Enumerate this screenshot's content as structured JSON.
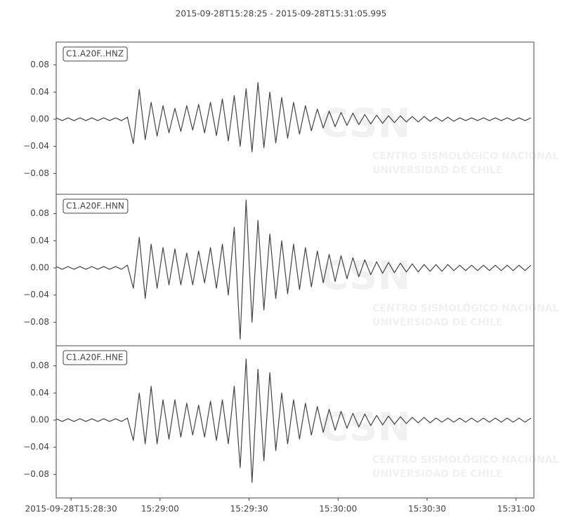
{
  "title": "2015-09-28T15:28:25  -  2015-09-28T15:31:05.995",
  "watermark": {
    "logo": "CSN",
    "line1": "CENTRO SISMOLÓGICO NACIONAL",
    "line2": "UNIVERSIDAD DE CHILE"
  },
  "chart_data": [
    {
      "type": "line",
      "x": [
        0,
        2,
        4,
        6,
        8,
        10,
        12,
        14,
        16,
        18,
        20,
        22,
        24,
        26,
        28,
        30,
        32,
        34,
        36,
        38,
        40,
        42,
        44,
        46,
        48,
        50,
        52,
        54,
        56,
        58,
        60,
        62,
        64,
        66,
        68,
        70,
        72,
        74,
        76,
        78,
        80,
        82,
        84,
        86,
        88,
        90,
        92,
        94,
        96,
        98,
        100,
        102,
        104,
        106,
        108,
        110,
        112,
        114,
        116,
        118,
        120,
        122,
        124,
        126,
        128,
        130,
        132,
        134,
        136,
        138,
        140,
        142,
        144,
        146,
        148,
        150,
        152,
        154,
        156,
        158,
        160
      ],
      "series": [
        {
          "name": "C1.A20F..HNZ",
          "color": "#444444",
          "values": [
            0.002,
            -0.002,
            0.002,
            -0.002,
            0.002,
            -0.002,
            0.002,
            -0.002,
            0.002,
            -0.002,
            0.002,
            -0.002,
            0.003,
            -0.036,
            0.044,
            -0.03,
            0.025,
            -0.025,
            0.02,
            -0.02,
            0.016,
            -0.018,
            0.02,
            -0.016,
            0.022,
            -0.02,
            0.025,
            -0.024,
            0.03,
            -0.032,
            0.035,
            -0.04,
            0.045,
            -0.048,
            0.054,
            -0.042,
            0.04,
            -0.035,
            0.032,
            -0.028,
            0.025,
            -0.022,
            0.02,
            -0.017,
            0.015,
            -0.013,
            0.012,
            -0.011,
            0.01,
            -0.009,
            0.009,
            -0.008,
            0.007,
            -0.007,
            0.006,
            -0.006,
            0.005,
            -0.005,
            0.005,
            -0.004,
            0.004,
            -0.004,
            0.004,
            -0.003,
            0.003,
            -0.003,
            0.003,
            -0.003,
            0.002,
            -0.002,
            0.002,
            -0.002,
            0.002,
            -0.002,
            0.002,
            -0.002,
            0.002,
            -0.002,
            0.002,
            -0.002,
            0.002
          ]
        }
      ],
      "xlim": [
        0,
        160.995
      ],
      "ylim": [
        -0.1106,
        0.1137
      ],
      "yticks": [
        {
          "value": -0.08,
          "label": "−0.08"
        },
        {
          "value": -0.04,
          "label": "−0.04"
        },
        {
          "value": 0,
          "label": "0.00"
        },
        0.04,
        0.08
      ]
    },
    {
      "type": "line",
      "x": [
        0,
        2,
        4,
        6,
        8,
        10,
        12,
        14,
        16,
        18,
        20,
        22,
        24,
        26,
        28,
        30,
        32,
        34,
        36,
        38,
        40,
        42,
        44,
        46,
        48,
        50,
        52,
        54,
        56,
        58,
        60,
        62,
        64,
        66,
        68,
        70,
        72,
        74,
        76,
        78,
        80,
        82,
        84,
        86,
        88,
        90,
        92,
        94,
        96,
        98,
        100,
        102,
        104,
        106,
        108,
        110,
        112,
        114,
        116,
        118,
        120,
        122,
        124,
        126,
        128,
        130,
        132,
        134,
        136,
        138,
        140,
        142,
        144,
        146,
        148,
        150,
        152,
        154,
        156,
        158,
        160
      ],
      "series": [
        {
          "name": "C1.A20F..HNN",
          "color": "#444444",
          "values": [
            0.002,
            -0.002,
            0.002,
            -0.002,
            0.002,
            -0.002,
            0.002,
            -0.002,
            0.002,
            -0.002,
            0.002,
            -0.002,
            0.004,
            -0.03,
            0.045,
            -0.045,
            0.035,
            -0.03,
            0.03,
            -0.025,
            0.028,
            -0.025,
            0.022,
            -0.025,
            0.025,
            -0.022,
            0.03,
            -0.03,
            0.035,
            -0.04,
            0.06,
            -0.105,
            0.1,
            -0.08,
            0.07,
            -0.062,
            0.05,
            -0.045,
            0.04,
            -0.038,
            0.035,
            -0.032,
            0.03,
            -0.028,
            0.025,
            -0.022,
            0.02,
            -0.02,
            0.018,
            -0.016,
            0.015,
            -0.013,
            0.012,
            -0.01,
            0.009,
            -0.008,
            0.008,
            -0.007,
            0.007,
            -0.006,
            0.006,
            -0.006,
            0.005,
            -0.005,
            0.005,
            -0.005,
            0.005,
            -0.004,
            0.004,
            -0.004,
            0.004,
            -0.004,
            0.004,
            -0.004,
            0.004,
            -0.004,
            0.004,
            -0.004,
            0.004,
            -0.004,
            0.004
          ]
        }
      ],
      "xlim": [
        0,
        160.995
      ],
      "ylim": [
        -0.1147,
        0.1085
      ],
      "yticks": [
        {
          "value": -0.08,
          "label": "−0.08"
        },
        {
          "value": -0.04,
          "label": "−0.04"
        },
        {
          "value": 0,
          "label": "0.00"
        },
        0.04,
        0.08
      ]
    },
    {
      "type": "line",
      "x": [
        0,
        2,
        4,
        6,
        8,
        10,
        12,
        14,
        16,
        18,
        20,
        22,
        24,
        26,
        28,
        30,
        32,
        34,
        36,
        38,
        40,
        42,
        44,
        46,
        48,
        50,
        52,
        54,
        56,
        58,
        60,
        62,
        64,
        66,
        68,
        70,
        72,
        74,
        76,
        78,
        80,
        82,
        84,
        86,
        88,
        90,
        92,
        94,
        96,
        98,
        100,
        102,
        104,
        106,
        108,
        110,
        112,
        114,
        116,
        118,
        120,
        122,
        124,
        126,
        128,
        130,
        132,
        134,
        136,
        138,
        140,
        142,
        144,
        146,
        148,
        150,
        152,
        154,
        156,
        158,
        160
      ],
      "series": [
        {
          "name": "C1.A20F..HNE",
          "color": "#444444",
          "values": [
            0.002,
            -0.002,
            0.002,
            -0.002,
            0.002,
            -0.002,
            0.002,
            -0.002,
            0.002,
            -0.002,
            0.002,
            -0.002,
            0.003,
            -0.03,
            0.04,
            -0.035,
            0.05,
            -0.035,
            0.03,
            -0.028,
            0.03,
            -0.025,
            0.025,
            -0.022,
            0.022,
            -0.025,
            0.028,
            -0.03,
            0.03,
            -0.035,
            0.05,
            -0.07,
            0.09,
            -0.092,
            0.075,
            -0.06,
            0.07,
            -0.045,
            0.04,
            -0.035,
            0.03,
            -0.028,
            0.025,
            -0.022,
            0.02,
            -0.018,
            0.016,
            -0.015,
            0.013,
            -0.012,
            0.01,
            -0.01,
            0.009,
            -0.008,
            0.007,
            -0.007,
            0.006,
            -0.006,
            0.005,
            -0.005,
            0.004,
            -0.004,
            0.004,
            -0.004,
            0.003,
            -0.003,
            0.003,
            -0.003,
            0.003,
            -0.003,
            0.003,
            -0.003,
            0.003,
            -0.003,
            0.003,
            -0.003,
            0.003,
            -0.003,
            0.003,
            -0.003,
            0.003
          ]
        }
      ],
      "xlim": [
        0,
        160.995
      ],
      "ylim": [
        -0.1147,
        0.1096
      ],
      "yticks": [
        {
          "value": -0.08,
          "label": "−0.08"
        },
        {
          "value": -0.04,
          "label": "−0.04"
        },
        {
          "value": 0,
          "label": "0.00"
        },
        0.04,
        0.08
      ],
      "xticks": [
        {
          "value": 5,
          "label": "2015-09-28T15:28:30"
        },
        {
          "value": 35,
          "label": "15:29:00"
        },
        {
          "value": 65,
          "label": "15:29:30"
        },
        {
          "value": 95,
          "label": "15:30:00"
        },
        {
          "value": 125,
          "label": "15:30:30"
        },
        {
          "value": 155,
          "label": "15:31:00"
        }
      ]
    }
  ]
}
